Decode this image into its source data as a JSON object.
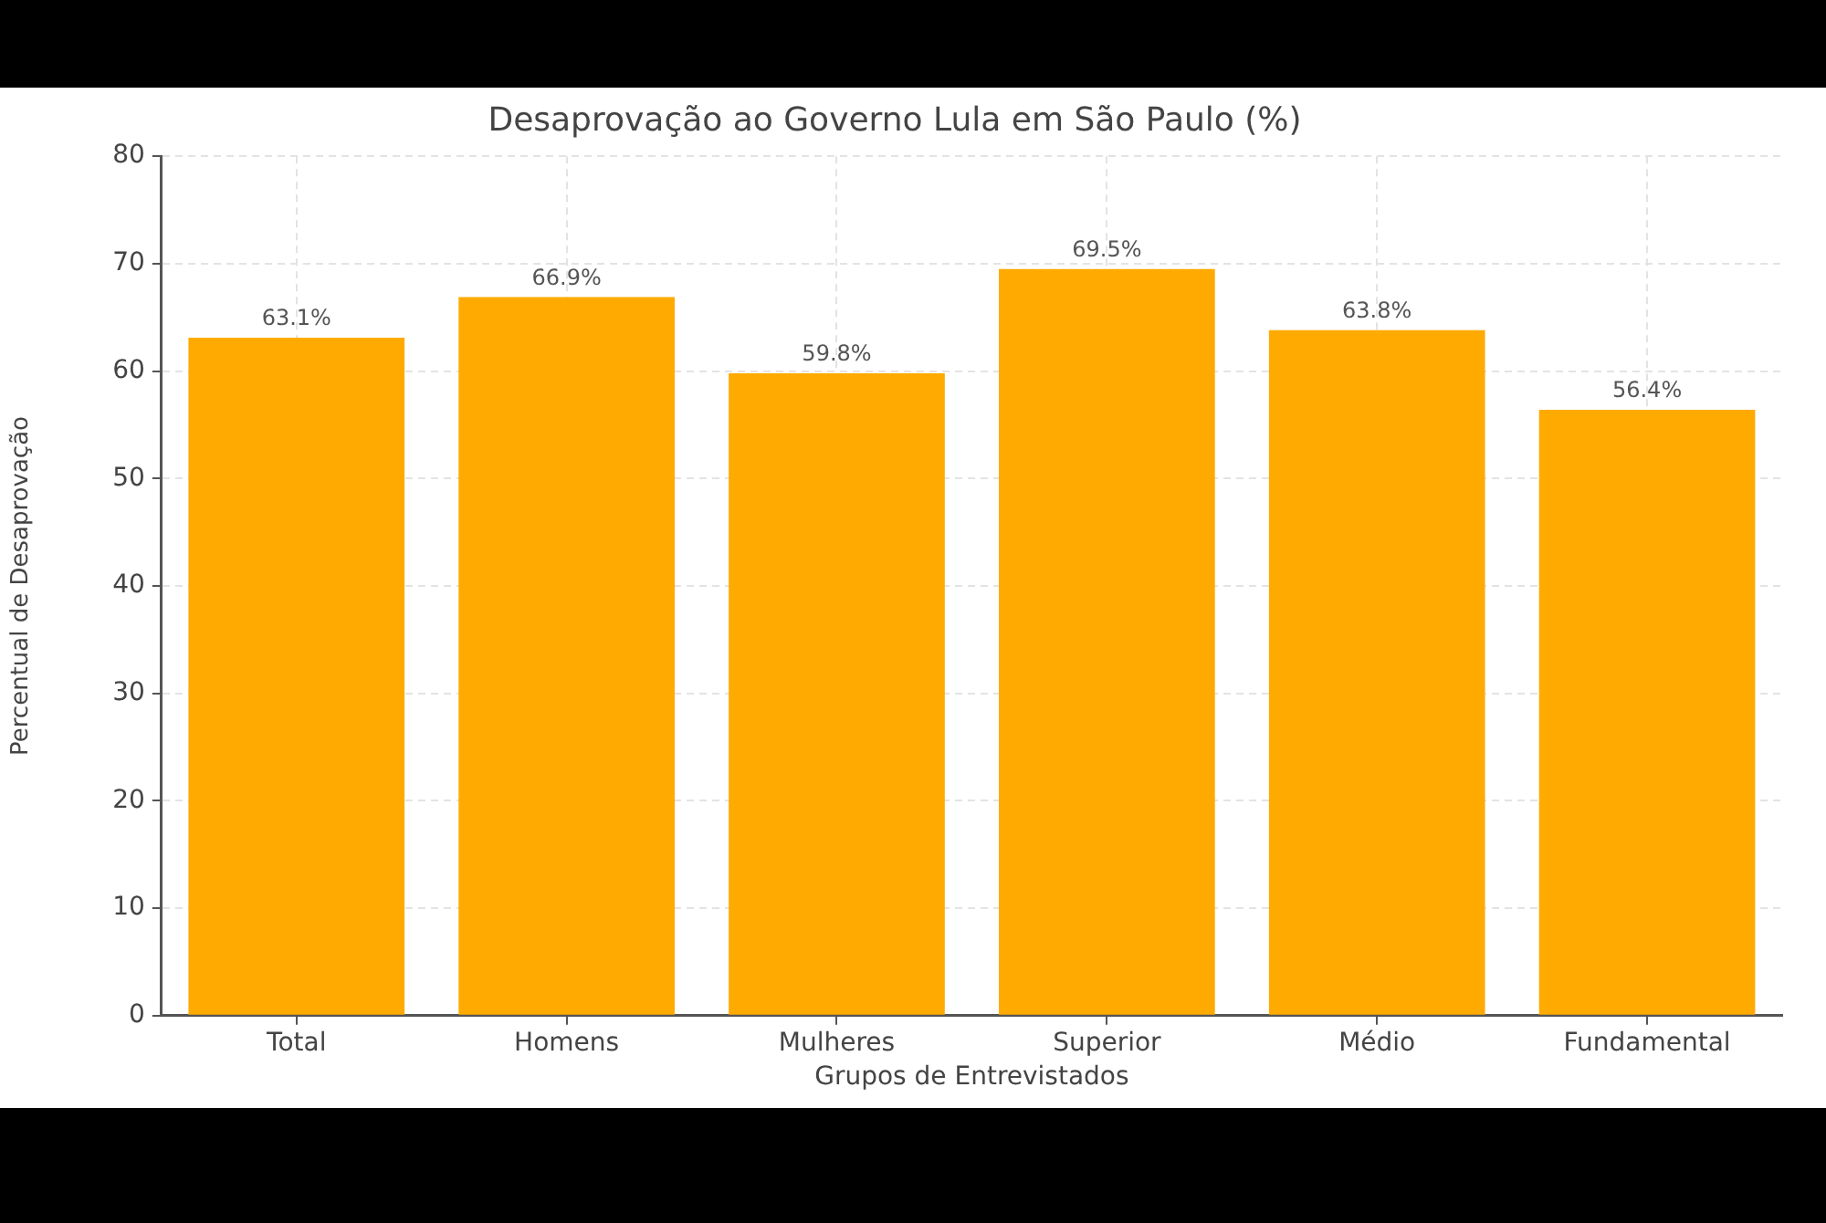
{
  "chart_data": {
    "type": "bar",
    "title": "Desaprovação ao Governo Lula em São Paulo (%)",
    "xlabel": "Grupos de Entrevistados",
    "ylabel": "Percentual de Desaprovação",
    "categories": [
      "Total",
      "Homens",
      "Mulheres",
      "Superior",
      "Médio",
      "Fundamental"
    ],
    "values": [
      63.1,
      66.9,
      59.8,
      69.5,
      63.8,
      56.4
    ],
    "value_labels": [
      "63.1%",
      "66.9%",
      "59.8%",
      "69.5%",
      "63.8%",
      "56.4%"
    ],
    "color": "#ffaa00",
    "ylim": [
      0,
      80
    ],
    "yticks": [
      0,
      10,
      20,
      30,
      40,
      50,
      60,
      70,
      80
    ],
    "grid": true
  }
}
